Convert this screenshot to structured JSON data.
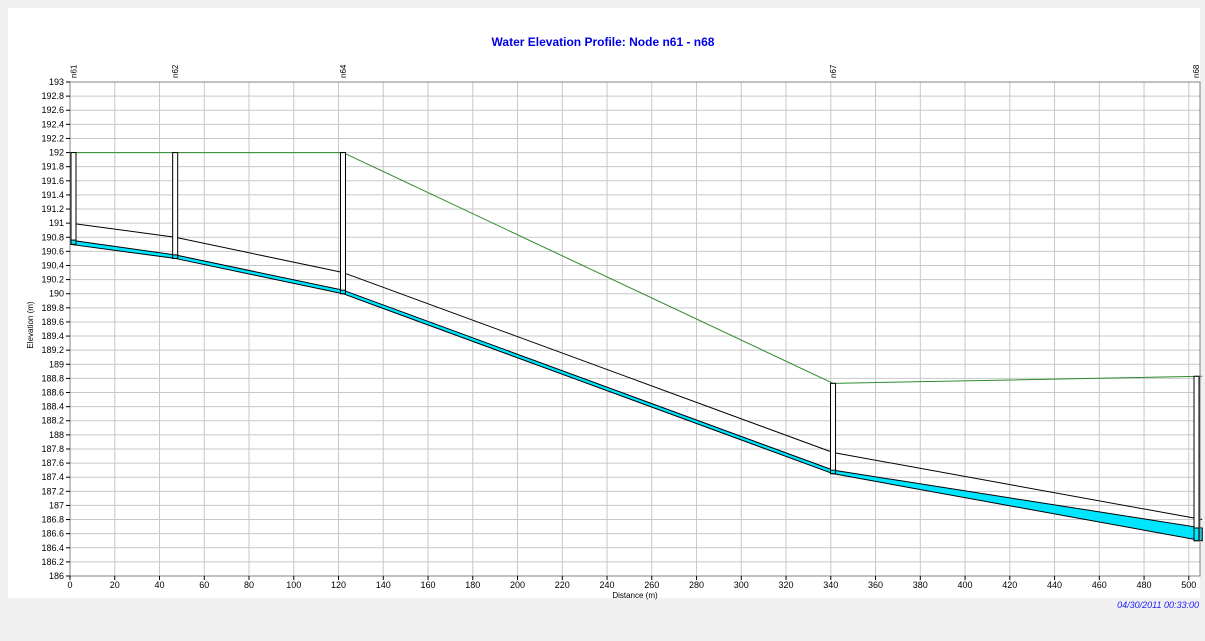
{
  "chart_data": {
    "type": "line",
    "title": "Water Elevation Profile: Node n61 - n68",
    "xlabel": "Distance (m)",
    "ylabel": "Elevation (m)",
    "xlim": [
      0,
      505
    ],
    "ylim": [
      186,
      193
    ],
    "x_ticks": [
      0,
      20,
      40,
      60,
      80,
      100,
      120,
      140,
      160,
      180,
      200,
      220,
      240,
      260,
      280,
      300,
      320,
      340,
      360,
      380,
      400,
      420,
      440,
      460,
      480,
      500
    ],
    "y_ticks": [
      186,
      186.2,
      186.4,
      186.6,
      186.8,
      187,
      187.2,
      187.4,
      187.6,
      187.8,
      188,
      188.2,
      188.4,
      188.6,
      188.8,
      189,
      189.2,
      189.4,
      189.6,
      189.8,
      190,
      190.2,
      190.4,
      190.6,
      190.8,
      191,
      191.2,
      191.4,
      191.6,
      191.8,
      192,
      192.2,
      192.4,
      192.6,
      192.8,
      193
    ],
    "grid": true,
    "nodes": [
      {
        "name": "n61",
        "x": 0,
        "invert": 190.7,
        "water": 190.76,
        "ground": 192.0
      },
      {
        "name": "n62",
        "x": 47,
        "invert": 190.5,
        "water": 190.55,
        "ground": 192.0
      },
      {
        "name": "n64",
        "x": 122,
        "invert": 190.0,
        "water": 190.05,
        "ground": 192.0
      },
      {
        "name": "n67",
        "x": 341,
        "invert": 187.45,
        "water": 187.5,
        "ground": 188.73
      },
      {
        "name": "n68",
        "x": 506,
        "invert": 186.5,
        "water": 186.68,
        "ground": 188.83
      }
    ],
    "links": [
      {
        "from": "n61",
        "to": "n62",
        "up_invert": 190.7,
        "down_invert": 190.5,
        "up_water": 190.76,
        "down_water": 190.55,
        "up_crown": 191.0,
        "down_crown": 190.8
      },
      {
        "from": "n62",
        "to": "n64",
        "up_invert": 190.5,
        "down_invert": 190.0,
        "up_water": 190.55,
        "down_water": 190.05,
        "up_crown": 190.8,
        "down_crown": 190.3
      },
      {
        "from": "n64",
        "to": "n67",
        "up_invert": 190.0,
        "down_invert": 187.45,
        "up_water": 190.05,
        "down_water": 187.5,
        "up_crown": 190.3,
        "down_crown": 187.75
      },
      {
        "from": "n67",
        "to": "n68",
        "up_invert": 187.45,
        "down_invert": 186.5,
        "up_water": 187.5,
        "down_water": 186.68,
        "up_crown": 187.75,
        "down_crown": 186.8
      }
    ],
    "timestamp": "04/30/2011 00:33:00",
    "colors": {
      "water": "#00e5ff",
      "ground": "#2e8b2e",
      "pipe": "#000000",
      "grid": "#c8c8c8",
      "title": "#0000e6",
      "timestamp": "#1a1aff"
    }
  }
}
